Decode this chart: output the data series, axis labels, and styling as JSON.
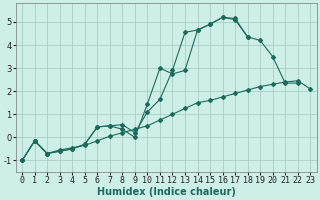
{
  "bg_color": "#ceeee8",
  "grid_color": "#aaccc6",
  "line_color": "#1a6b5a",
  "xlabel": "Humidex (Indice chaleur)",
  "xlim": [
    -0.5,
    23.5
  ],
  "ylim": [
    -1.5,
    5.8
  ],
  "yticks": [
    -1,
    0,
    1,
    2,
    3,
    4,
    5
  ],
  "xticks": [
    0,
    1,
    2,
    3,
    4,
    5,
    6,
    7,
    8,
    9,
    10,
    11,
    12,
    13,
    14,
    15,
    16,
    17,
    18,
    19,
    20,
    21,
    22,
    23
  ],
  "series1_x": [
    0,
    1,
    2,
    3,
    4,
    5,
    6,
    7,
    8,
    9,
    10,
    11,
    12,
    13,
    14,
    15,
    16,
    17,
    18,
    19,
    20,
    21,
    22,
    23
  ],
  "series1_y": [
    -1.0,
    -0.15,
    -0.7,
    -0.55,
    -0.45,
    -0.35,
    -0.15,
    0.05,
    0.2,
    0.35,
    0.5,
    0.75,
    1.0,
    1.25,
    1.5,
    1.6,
    1.75,
    1.9,
    2.05,
    2.2,
    2.3,
    2.4,
    2.45,
    2.1
  ],
  "series2_x": [
    0,
    1,
    2,
    3,
    4,
    5,
    6,
    7,
    8,
    9,
    10,
    11,
    12,
    13,
    14,
    15,
    16,
    17,
    18,
    19,
    20,
    21,
    22
  ],
  "series2_y": [
    -1.0,
    -0.15,
    -0.7,
    -0.6,
    -0.5,
    -0.3,
    0.45,
    0.5,
    0.55,
    0.2,
    1.1,
    1.65,
    2.9,
    4.55,
    4.65,
    4.9,
    5.2,
    5.1,
    4.35,
    4.2,
    3.5,
    2.35,
    2.35
  ],
  "series3_x": [
    0,
    1,
    2,
    3,
    4,
    5,
    6,
    7,
    8,
    9,
    10,
    11,
    12,
    13,
    14,
    15,
    16,
    17,
    18
  ],
  "series3_y": [
    -1.0,
    -0.15,
    -0.7,
    -0.6,
    -0.5,
    -0.3,
    0.45,
    0.5,
    0.35,
    0.0,
    1.45,
    3.0,
    2.75,
    2.9,
    4.65,
    4.9,
    5.2,
    5.15,
    4.35
  ],
  "label_fontsize": 7,
  "tick_fontsize": 6
}
